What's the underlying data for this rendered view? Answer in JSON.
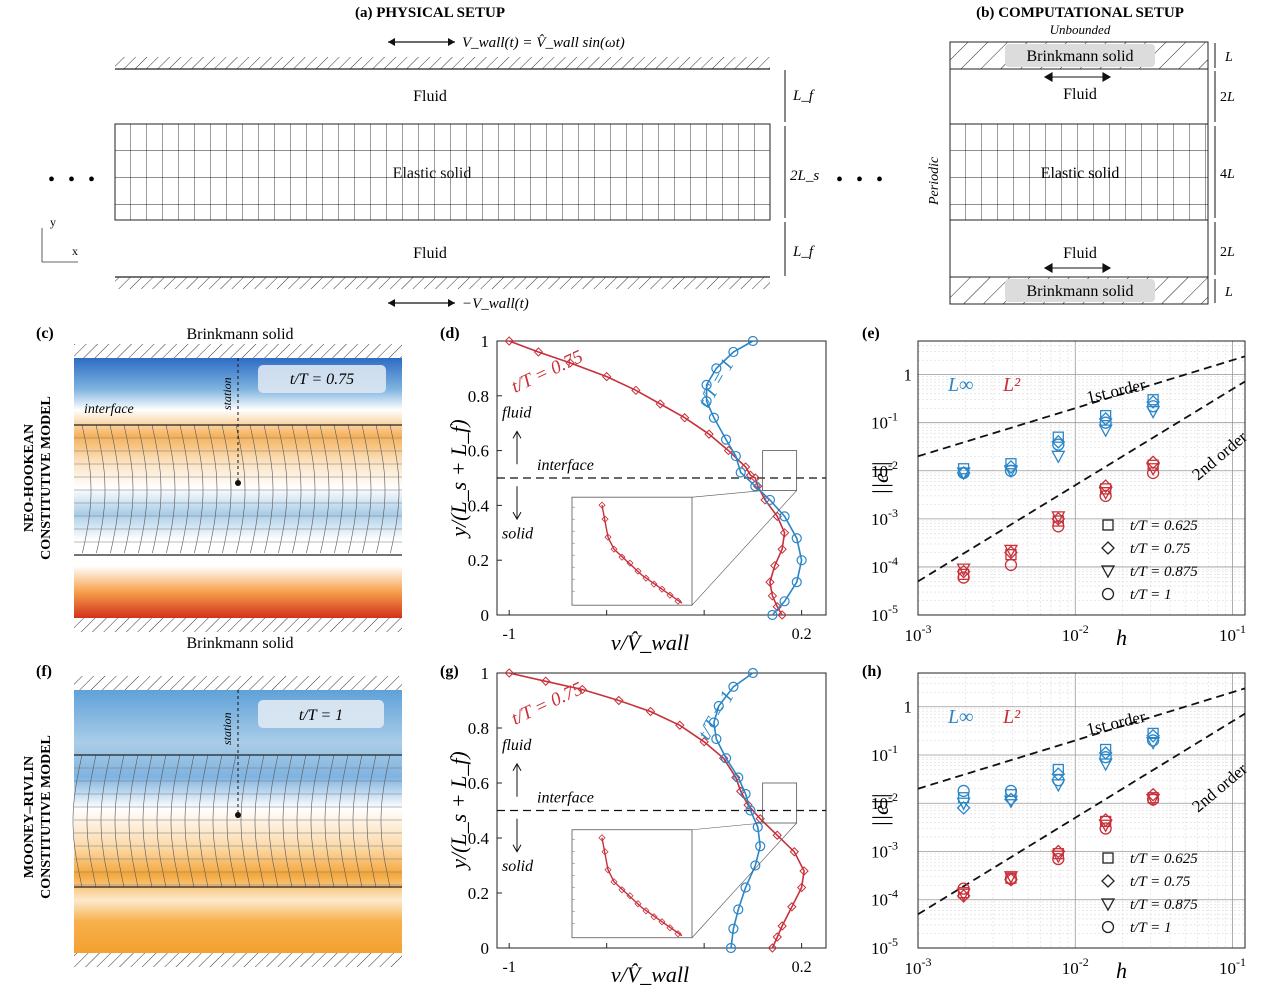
{
  "panels": {
    "a": {
      "tag": "(a)",
      "title": "PHYSICAL SETUP",
      "top_wall": "V_wall(t) = V̂_wall sin(ωt)",
      "bottom_wall": "−V_wall(t)",
      "fluid": "Fluid",
      "solid": "Elastic solid",
      "dim_fluid": "L_f",
      "dim_solid": "2L_s",
      "axis_x": "x",
      "axis_y": "y",
      "ellipsis": "• • •"
    },
    "b": {
      "tag": "(b)",
      "title": "COMPUTATIONAL SETUP",
      "unbounded": "Unbounded",
      "periodic": "Periodic",
      "brinkmann": "Brinkmann solid",
      "fluid": "Fluid",
      "solid": "Elastic solid",
      "dim_L": "L",
      "dim_2L": "2L",
      "dim_4L": "4L"
    },
    "c": {
      "tag": "(c)",
      "top": "Brinkmann solid",
      "bottom": "Brinkmann solid",
      "time": "t/T = 0.75",
      "interface": "interface",
      "station": "station"
    },
    "f": {
      "tag": "(f)",
      "time": "t/T = 1",
      "station": "station"
    },
    "d": {
      "tag": "(d)",
      "label_red": "t/T = 0.75",
      "label_blue": "t/T = 1",
      "fluid": "fluid",
      "interface": "interface",
      "solid": "solid"
    },
    "g": {
      "tag": "(g)",
      "label_red": "t/T = 0.75",
      "label_blue": "t/T = 1",
      "fluid": "fluid",
      "interface": "interface",
      "solid": "solid"
    },
    "e": {
      "tag": "(e)",
      "linf": "L∞",
      "l2": "L²",
      "first": "1st order",
      "second": "2nd order"
    },
    "h": {
      "tag": "(h)",
      "linf": "L∞",
      "l2": "L²",
      "first": "1st order",
      "second": "2nd order"
    }
  },
  "row_labels": {
    "top": [
      "NEO-HOOKEAN",
      "CONSTITUTIVE MODEL"
    ],
    "bottom": [
      "MOONEY–RIVLIN",
      "CONSTITUTIVE MODEL"
    ]
  },
  "legend": [
    "t/T = 0.625",
    "t/T = 0.75",
    "t/T = 0.875",
    "t/T = 1"
  ],
  "colors": {
    "blue": "#2a86c8",
    "red": "#c8303a"
  },
  "chart_data": [
    {
      "type": "line",
      "panel": "d",
      "xlabel": "v/V̂_wall",
      "ylabel": "y/(L_s + L_f)",
      "xticks": [
        "-1",
        "0.2"
      ],
      "yticks": [
        "0",
        "0.2",
        "0.4",
        "0.6",
        "0.8",
        "1"
      ],
      "xlim": [
        -1.05,
        0.3
      ],
      "ylim": [
        0,
        1
      ],
      "series": [
        {
          "name": "t/T = 0.75",
          "color": "#c8303a",
          "x": [
            -1.0,
            -0.88,
            -0.75,
            -0.6,
            -0.48,
            -0.38,
            -0.28,
            -0.18,
            -0.1,
            -0.03,
            -0.01,
            0.01,
            0.02,
            0.05,
            0.1,
            0.13,
            0.12,
            0.09,
            0.07,
            0.08,
            0.1,
            0.12
          ],
          "y": [
            1.0,
            0.96,
            0.92,
            0.87,
            0.82,
            0.77,
            0.72,
            0.66,
            0.6,
            0.54,
            0.51,
            0.5,
            0.47,
            0.42,
            0.36,
            0.3,
            0.24,
            0.18,
            0.12,
            0.07,
            0.03,
            0.0
          ]
        },
        {
          "name": "t/T = 1",
          "color": "#2a86c8",
          "x": [
            0.0,
            -0.08,
            -0.15,
            -0.19,
            -0.19,
            -0.16,
            -0.11,
            -0.07,
            -0.05,
            0.01,
            0.07,
            0.13,
            0.18,
            0.2,
            0.18,
            0.13,
            0.08
          ],
          "y": [
            1.0,
            0.96,
            0.9,
            0.84,
            0.78,
            0.72,
            0.64,
            0.58,
            0.52,
            0.47,
            0.42,
            0.36,
            0.28,
            0.2,
            0.12,
            0.05,
            0.0
          ]
        }
      ]
    },
    {
      "type": "line",
      "panel": "g",
      "xlabel": "v/V̂_wall",
      "ylabel": "y/(L_s + L_f)",
      "xticks": [
        "-1",
        "0.2"
      ],
      "yticks": [
        "0",
        "0.2",
        "0.4",
        "0.6",
        "0.8",
        "1"
      ],
      "xlim": [
        -1.05,
        0.3
      ],
      "ylim": [
        0,
        1
      ],
      "series": [
        {
          "name": "t/T = 0.75",
          "color": "#c8303a",
          "x": [
            -1.0,
            -0.85,
            -0.7,
            -0.55,
            -0.42,
            -0.3,
            -0.2,
            -0.12,
            -0.07,
            -0.05,
            -0.02,
            0.03,
            0.1,
            0.17,
            0.21,
            0.2,
            0.16,
            0.12,
            0.1,
            0.08
          ],
          "y": [
            1.0,
            0.97,
            0.94,
            0.9,
            0.86,
            0.81,
            0.75,
            0.69,
            0.62,
            0.57,
            0.52,
            0.47,
            0.41,
            0.35,
            0.28,
            0.22,
            0.15,
            0.08,
            0.04,
            0.0
          ]
        },
        {
          "name": "t/T = 1",
          "color": "#2a86c8",
          "x": [
            0.0,
            -0.08,
            -0.14,
            -0.16,
            -0.15,
            -0.11,
            -0.06,
            -0.03,
            -0.01,
            0.02,
            0.03,
            0.01,
            -0.03,
            -0.06,
            -0.08,
            -0.09
          ],
          "y": [
            1.0,
            0.95,
            0.88,
            0.82,
            0.76,
            0.69,
            0.62,
            0.56,
            0.5,
            0.44,
            0.37,
            0.3,
            0.22,
            0.14,
            0.07,
            0.0
          ]
        }
      ]
    },
    {
      "type": "scatter",
      "panel": "e",
      "xscale": "log",
      "yscale": "log",
      "xlabel": "h",
      "ylabel": "||e||",
      "xlim": [
        0.001,
        0.12
      ],
      "ylim": [
        1e-05,
        5
      ],
      "h": [
        0.00195,
        0.0039,
        0.0078,
        0.0156,
        0.03125
      ],
      "series": [
        {
          "name": "L∞ t/T=0.625",
          "norm": "Linf",
          "marker": "square",
          "values": [
            0.011,
            0.014,
            0.05,
            0.14,
            0.3
          ]
        },
        {
          "name": "L∞ t/T=0.75",
          "norm": "Linf",
          "marker": "diamond",
          "values": [
            0.009,
            0.012,
            0.04,
            0.12,
            0.27
          ]
        },
        {
          "name": "L∞ t/T=0.875",
          "norm": "Linf",
          "marker": "triangle-down",
          "values": [
            0.009,
            0.01,
            0.02,
            0.07,
            0.17
          ]
        },
        {
          "name": "L∞ t/T=1",
          "norm": "Linf",
          "marker": "circle",
          "values": [
            0.009,
            0.01,
            0.035,
            0.1,
            0.22
          ]
        },
        {
          "name": "L2 t/T=0.625",
          "norm": "L2",
          "marker": "square",
          "values": [
            7e-05,
            0.00018,
            0.0009,
            0.0042,
            0.013
          ]
        },
        {
          "name": "L2 t/T=0.75",
          "norm": "L2",
          "marker": "diamond",
          "values": [
            8e-05,
            0.0002,
            0.001,
            0.0048,
            0.015
          ]
        },
        {
          "name": "L2 t/T=0.875",
          "norm": "L2",
          "marker": "triangle-down",
          "values": [
            9e-05,
            0.00022,
            0.0011,
            0.0035,
            0.011
          ]
        },
        {
          "name": "L2 t/T=1",
          "norm": "L2",
          "marker": "circle",
          "values": [
            6e-05,
            0.00011,
            0.0007,
            0.003,
            0.009
          ]
        }
      ]
    },
    {
      "type": "scatter",
      "panel": "h",
      "xscale": "log",
      "yscale": "log",
      "xlabel": "h",
      "ylabel": "||e||",
      "xlim": [
        0.001,
        0.12
      ],
      "ylim": [
        1e-05,
        5
      ],
      "h": [
        0.00195,
        0.0039,
        0.0078,
        0.0156,
        0.03125
      ],
      "series": [
        {
          "name": "L∞ t/T=0.625",
          "norm": "Linf",
          "marker": "square",
          "values": [
            0.013,
            0.015,
            0.05,
            0.13,
            0.28
          ]
        },
        {
          "name": "L∞ t/T=0.75",
          "norm": "Linf",
          "marker": "diamond",
          "values": [
            0.008,
            0.012,
            0.04,
            0.11,
            0.25
          ]
        },
        {
          "name": "L∞ t/T=0.875",
          "norm": "Linf",
          "marker": "triangle-down",
          "values": [
            0.01,
            0.011,
            0.024,
            0.065,
            0.18
          ]
        },
        {
          "name": "L∞ t/T=1",
          "norm": "Linf",
          "marker": "circle",
          "values": [
            0.018,
            0.018,
            0.03,
            0.09,
            0.2
          ]
        },
        {
          "name": "L2 t/T=0.625",
          "norm": "L2",
          "marker": "square",
          "values": [
            0.00014,
            0.00028,
            0.0009,
            0.0042,
            0.013
          ]
        },
        {
          "name": "L2 t/T=0.75",
          "norm": "L2",
          "marker": "diamond",
          "values": [
            0.00012,
            0.00026,
            0.001,
            0.0045,
            0.015
          ]
        },
        {
          "name": "L2 t/T=0.875",
          "norm": "L2",
          "marker": "triangle-down",
          "values": [
            0.00013,
            0.0003,
            0.0008,
            0.0035,
            0.012
          ]
        },
        {
          "name": "L2 t/T=1",
          "norm": "L2",
          "marker": "circle",
          "values": [
            0.00017,
            0.00027,
            0.0007,
            0.003,
            0.012
          ]
        }
      ]
    }
  ]
}
